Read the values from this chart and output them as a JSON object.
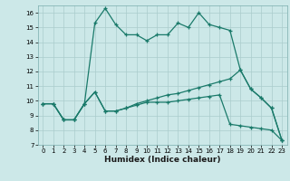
{
  "xlabel": "Humidex (Indice chaleur)",
  "bg_color": "#cce8e8",
  "line_color": "#1a7a6a",
  "grid_color": "#aacccc",
  "xlim": [
    -0.5,
    23.5
  ],
  "ylim": [
    7,
    16.5
  ],
  "yticks": [
    7,
    8,
    9,
    10,
    11,
    12,
    13,
    14,
    15,
    16
  ],
  "xticks": [
    0,
    1,
    2,
    3,
    4,
    5,
    6,
    7,
    8,
    9,
    10,
    11,
    12,
    13,
    14,
    15,
    16,
    17,
    18,
    19,
    20,
    21,
    22,
    23
  ],
  "line1_x": [
    0,
    1,
    2,
    3,
    4,
    5,
    6,
    7,
    8,
    9,
    10,
    11,
    12,
    13,
    14,
    15,
    16,
    17,
    18,
    19,
    20,
    21,
    22,
    23
  ],
  "line1_y": [
    9.8,
    9.8,
    8.7,
    8.7,
    9.8,
    15.3,
    16.3,
    15.2,
    14.5,
    14.5,
    14.1,
    14.5,
    14.5,
    15.3,
    15.0,
    16.0,
    15.2,
    15.0,
    14.8,
    12.1,
    10.8,
    10.2,
    9.5,
    7.3
  ],
  "line2_x": [
    0,
    1,
    2,
    3,
    4,
    5,
    6,
    7,
    8,
    9,
    10,
    11,
    12,
    13,
    14,
    15,
    16,
    17,
    18,
    19,
    20,
    21,
    22,
    23
  ],
  "line2_y": [
    9.8,
    9.8,
    8.7,
    8.7,
    9.8,
    10.6,
    9.3,
    9.3,
    9.5,
    9.7,
    9.9,
    9.9,
    9.9,
    10.0,
    10.1,
    10.2,
    10.3,
    10.4,
    8.4,
    8.3,
    8.2,
    8.1,
    8.0,
    7.3
  ],
  "line3_x": [
    0,
    1,
    2,
    3,
    4,
    5,
    6,
    7,
    8,
    9,
    10,
    11,
    12,
    13,
    14,
    15,
    16,
    17,
    18,
    19,
    20,
    21,
    22,
    23
  ],
  "line3_y": [
    9.8,
    9.8,
    8.7,
    8.7,
    9.8,
    10.6,
    9.3,
    9.3,
    9.5,
    9.8,
    10.0,
    10.2,
    10.4,
    10.5,
    10.7,
    10.9,
    11.1,
    11.3,
    11.5,
    12.1,
    10.8,
    10.2,
    9.5,
    7.3
  ],
  "tick_fontsize": 5.0,
  "xlabel_fontsize": 6.5
}
